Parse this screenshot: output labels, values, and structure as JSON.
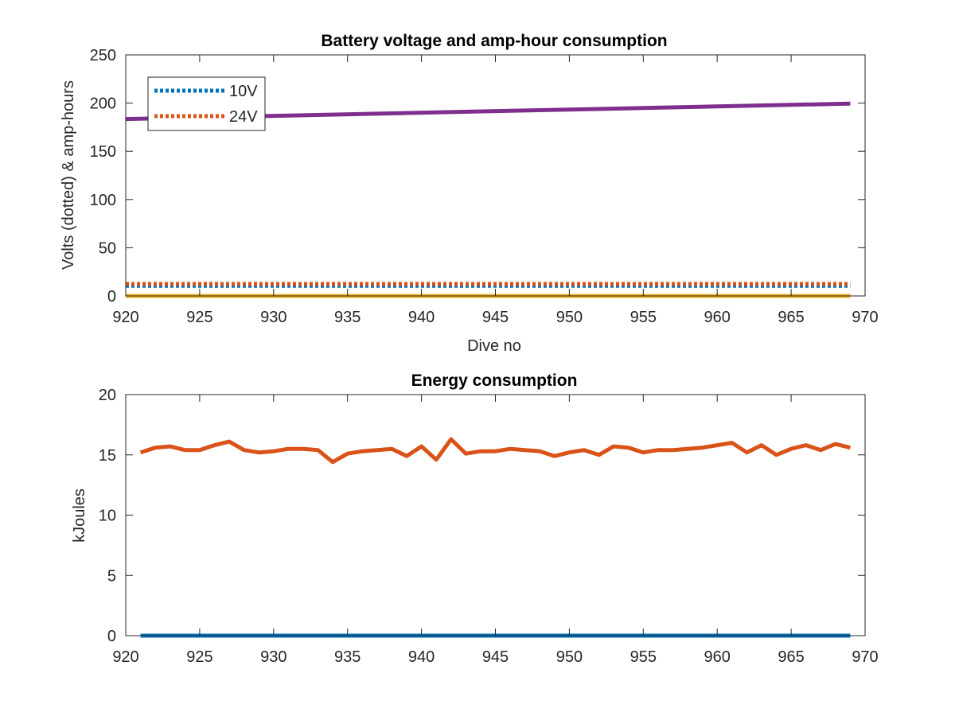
{
  "colors": {
    "blue": "#0072bd",
    "orange": "#d95319",
    "yellow": "#edb120",
    "purple": "#7e2f8e",
    "axes": "#262626"
  },
  "chart_data": [
    {
      "type": "line",
      "title": "Battery voltage and amp-hour consumption",
      "xlabel": "Dive no",
      "ylabel": "Volts (dotted) & amp-hours",
      "xlim": [
        920,
        970
      ],
      "ylim": [
        0,
        250
      ],
      "xticks": [
        920,
        925,
        930,
        935,
        940,
        945,
        950,
        955,
        960,
        965,
        970
      ],
      "yticks": [
        0,
        50,
        100,
        150,
        200,
        250
      ],
      "legend": {
        "location": "top-left",
        "entries": [
          "10V",
          "24V"
        ]
      },
      "series": [
        {
          "name": "10V",
          "style": "dotted",
          "color": "#0072bd",
          "x": [
            920,
            969
          ],
          "y": [
            10.5,
            10.5
          ]
        },
        {
          "name": "24V",
          "style": "dotted",
          "color": "#d95319",
          "x": [
            920,
            969
          ],
          "y": [
            12.5,
            12.5
          ]
        },
        {
          "style": "solid",
          "color": "#edb120",
          "x": [
            920,
            969
          ],
          "y": [
            0,
            0
          ]
        },
        {
          "style": "solid",
          "color": "#7e2f8e",
          "x": [
            920,
            969
          ],
          "y": [
            183.5,
            199.5
          ]
        }
      ]
    },
    {
      "type": "line",
      "title": "Energy consumption",
      "xlabel": "",
      "ylabel": "kJoules",
      "xlim": [
        920,
        970
      ],
      "ylim": [
        0,
        20
      ],
      "xticks": [
        920,
        925,
        930,
        935,
        940,
        945,
        950,
        955,
        960,
        965,
        970
      ],
      "yticks": [
        0,
        5,
        10,
        15,
        20
      ],
      "series": [
        {
          "style": "solid",
          "color": "#d95319",
          "x": [
            921,
            922,
            923,
            924,
            925,
            926,
            927,
            928,
            929,
            930,
            931,
            932,
            933,
            934,
            935,
            936,
            937,
            938,
            939,
            940,
            941,
            942,
            943,
            944,
            945,
            946,
            947,
            948,
            949,
            950,
            951,
            952,
            953,
            954,
            955,
            956,
            957,
            958,
            959,
            960,
            961,
            962,
            963,
            964,
            965,
            966,
            967,
            968,
            969
          ],
          "y": [
            15.2,
            15.6,
            15.7,
            15.4,
            15.4,
            15.8,
            16.1,
            15.4,
            15.2,
            15.3,
            15.5,
            15.5,
            15.4,
            14.4,
            15.1,
            15.3,
            15.4,
            15.5,
            14.9,
            15.7,
            14.6,
            16.3,
            15.1,
            15.3,
            15.3,
            15.5,
            15.4,
            15.3,
            14.9,
            15.2,
            15.4,
            15.0,
            15.7,
            15.6,
            15.2,
            15.4,
            15.4,
            15.5,
            15.6,
            15.8,
            16.0,
            15.2,
            15.8,
            15.0,
            15.5,
            15.8,
            15.4,
            15.9,
            15.6
          ]
        },
        {
          "style": "solid",
          "color": "#0072bd",
          "x": [
            921,
            969
          ],
          "y": [
            0,
            0
          ]
        }
      ]
    }
  ]
}
